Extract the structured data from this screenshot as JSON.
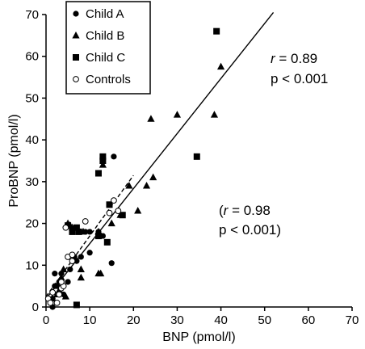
{
  "chart_data": {
    "type": "scatter",
    "xlabel": "BNP (pmol/l)",
    "ylabel": "ProBNP (pmol/l)",
    "xlim": [
      0,
      70
    ],
    "ylim": [
      0,
      70
    ],
    "xticks": [
      0,
      10,
      20,
      30,
      40,
      50,
      60,
      70
    ],
    "yticks": [
      0,
      10,
      20,
      30,
      40,
      50,
      60,
      70
    ],
    "grid": false,
    "legend_position": "top-left",
    "series": [
      {
        "name": "Child A",
        "marker": "filled-circle",
        "points": [
          [
            1.5,
            0
          ],
          [
            1.5,
            2
          ],
          [
            2,
            5
          ],
          [
            2.5,
            5
          ],
          [
            2,
            8
          ],
          [
            3,
            6
          ],
          [
            3.5,
            8
          ],
          [
            4,
            5
          ],
          [
            4,
            3
          ],
          [
            5,
            6
          ],
          [
            5.5,
            9
          ],
          [
            6.5,
            12
          ],
          [
            7,
            11
          ],
          [
            8,
            12
          ],
          [
            10,
            13
          ],
          [
            12,
            18
          ],
          [
            13,
            17
          ],
          [
            15,
            10.5
          ],
          [
            15.5,
            36
          ],
          [
            10,
            18
          ],
          [
            9,
            18
          ]
        ]
      },
      {
        "name": "Child B",
        "marker": "filled-triangle",
        "points": [
          [
            1.5,
            2
          ],
          [
            2.5,
            3
          ],
          [
            3,
            4
          ],
          [
            3.5,
            7
          ],
          [
            4,
            9
          ],
          [
            4.5,
            2.5
          ],
          [
            5,
            20
          ],
          [
            5.5,
            19.5
          ],
          [
            6,
            19
          ],
          [
            8,
            9
          ],
          [
            8,
            7
          ],
          [
            8.5,
            18
          ],
          [
            12,
            8
          ],
          [
            12.5,
            8
          ],
          [
            13,
            34
          ],
          [
            15,
            20
          ],
          [
            17,
            22
          ],
          [
            19,
            29
          ],
          [
            21,
            23
          ],
          [
            23,
            29
          ],
          [
            24,
            45
          ],
          [
            24.5,
            31
          ],
          [
            30,
            46
          ],
          [
            38.5,
            46
          ],
          [
            40,
            57.5
          ],
          [
            12,
            18
          ]
        ]
      },
      {
        "name": "Child C",
        "marker": "filled-square",
        "points": [
          [
            7,
            0.5
          ],
          [
            6,
            18
          ],
          [
            7,
            19
          ],
          [
            7.5,
            18
          ],
          [
            12,
            32
          ],
          [
            12,
            17
          ],
          [
            13,
            36
          ],
          [
            14,
            15.5
          ],
          [
            14.5,
            24.5
          ],
          [
            17.5,
            22
          ],
          [
            34.5,
            36
          ],
          [
            39,
            66
          ],
          [
            5,
            19.5
          ],
          [
            13,
            35
          ]
        ]
      },
      {
        "name": "Controls",
        "marker": "open-circle",
        "points": [
          [
            0.5,
            2
          ],
          [
            1,
            1
          ],
          [
            1.5,
            3.5
          ],
          [
            2.5,
            1
          ],
          [
            3,
            3
          ],
          [
            3.5,
            4.5
          ],
          [
            4,
            5
          ],
          [
            4.5,
            19
          ],
          [
            5,
            12
          ],
          [
            6,
            11
          ],
          [
            6,
            12.5
          ],
          [
            9,
            20.5
          ],
          [
            14.5,
            22.5
          ],
          [
            15.5,
            25.5
          ],
          [
            16.5,
            23
          ],
          [
            3.5,
            6
          ]
        ]
      }
    ],
    "fits": [
      {
        "style": "solid",
        "x": [
          0,
          52
        ],
        "y": [
          2,
          70.5
        ]
      },
      {
        "style": "dashed",
        "x": [
          0,
          20
        ],
        "y": [
          2.5,
          31.5
        ]
      }
    ],
    "annotations": {
      "upper": {
        "line1_italic": "r",
        "line1_rest": " = 0.89",
        "line2": "p < 0.001"
      },
      "lower": {
        "line1_prefix": "(",
        "line1_italic": "r",
        "line1_rest": " = 0.98",
        "line2": "p < 0.001)"
      }
    }
  }
}
